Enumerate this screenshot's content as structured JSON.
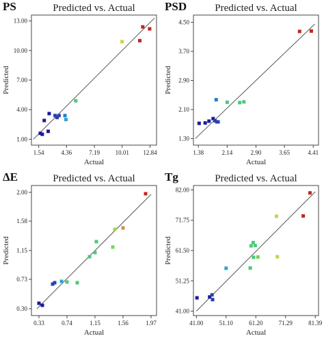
{
  "chart_data": [
    {
      "type": "scatter",
      "panel_label": "PS",
      "title": "Predicted vs. Actual",
      "xlabel": "Actual",
      "ylabel": "Predicted",
      "x_ticks": [
        "1.54",
        "4.36",
        "7.19",
        "10.01",
        "12.84"
      ],
      "y_ticks": [
        "1.00",
        "4.00",
        "7.00",
        "10.00",
        "13.00"
      ],
      "xlim": [
        0.8,
        13.5
      ],
      "ylim": [
        0.4,
        13.6
      ],
      "fit_line": [
        [
          1.0,
          1.0
        ],
        [
          13.3,
          13.3
        ]
      ],
      "points": [
        {
          "x": 1.7,
          "y": 1.6,
          "color": "#1a1a9c"
        },
        {
          "x": 1.9,
          "y": 1.5,
          "color": "#1a1a9c"
        },
        {
          "x": 2.1,
          "y": 2.9,
          "color": "#1a1a9c"
        },
        {
          "x": 2.5,
          "y": 1.8,
          "color": "#1a1a9c"
        },
        {
          "x": 2.6,
          "y": 3.6,
          "color": "#1a1a9c"
        },
        {
          "x": 3.2,
          "y": 3.4,
          "color": "#2a3eb0"
        },
        {
          "x": 3.4,
          "y": 3.2,
          "color": "#2a3eb0"
        },
        {
          "x": 3.6,
          "y": 3.4,
          "color": "#2a3eb0"
        },
        {
          "x": 4.2,
          "y": 3.4,
          "color": "#1f7fd0"
        },
        {
          "x": 4.3,
          "y": 3.0,
          "color": "#29a6d6"
        },
        {
          "x": 5.3,
          "y": 4.9,
          "color": "#4cc97a"
        },
        {
          "x": 10.0,
          "y": 10.9,
          "color": "#d0d24a"
        },
        {
          "x": 11.8,
          "y": 11.0,
          "color": "#c0281c"
        },
        {
          "x": 12.1,
          "y": 12.4,
          "color": "#c0281c"
        },
        {
          "x": 12.8,
          "y": 12.2,
          "color": "#c0281c"
        }
      ]
    },
    {
      "type": "scatter",
      "panel_label": "PSD",
      "title": "Predicted vs. Actual",
      "xlabel": "Actual",
      "ylabel": "Predicted",
      "x_ticks": [
        "1.38",
        "2.14",
        "2.90",
        "3.65",
        "4.41"
      ],
      "y_ticks": [
        "1.30",
        "2.10",
        "2.90",
        "3.70",
        "4.50"
      ],
      "xlim": [
        1.25,
        4.55
      ],
      "ylim": [
        1.12,
        4.7
      ],
      "fit_line": [
        [
          1.3,
          1.3
        ],
        [
          4.45,
          4.45
        ]
      ],
      "points": [
        {
          "x": 1.4,
          "y": 1.72,
          "color": "#1a1a9c"
        },
        {
          "x": 1.56,
          "y": 1.73,
          "color": "#1a1a9c"
        },
        {
          "x": 1.66,
          "y": 1.78,
          "color": "#1a1a9c"
        },
        {
          "x": 1.77,
          "y": 1.85,
          "color": "#1a1a9c"
        },
        {
          "x": 1.82,
          "y": 1.79,
          "color": "#2a3eb0"
        },
        {
          "x": 1.87,
          "y": 1.76,
          "color": "#2a3eb0"
        },
        {
          "x": 1.9,
          "y": 1.76,
          "color": "#2a3eb0"
        },
        {
          "x": 1.85,
          "y": 2.37,
          "color": "#1f7fd0"
        },
        {
          "x": 2.14,
          "y": 2.3,
          "color": "#4cc97a"
        },
        {
          "x": 2.47,
          "y": 2.29,
          "color": "#4cc97a"
        },
        {
          "x": 2.58,
          "y": 2.31,
          "color": "#4cc97a"
        },
        {
          "x": 4.05,
          "y": 4.25,
          "color": "#c0281c"
        },
        {
          "x": 4.36,
          "y": 4.26,
          "color": "#c0281c"
        }
      ]
    },
    {
      "type": "scatter",
      "panel_label": "ΔE",
      "title": "Predicted vs. Actual",
      "xlabel": "Actual",
      "ylabel": "Predicted",
      "x_ticks": [
        "0.33",
        "0.74",
        "1.15",
        "1.56",
        "1.97"
      ],
      "y_ticks": [
        "0.30",
        "0.73",
        "1.15",
        "1.58",
        "2.00"
      ],
      "xlim": [
        0.22,
        2.05
      ],
      "ylim": [
        0.2,
        2.1
      ],
      "fit_line": [
        [
          0.3,
          0.3
        ],
        [
          1.97,
          1.97
        ]
      ],
      "points": [
        {
          "x": 0.33,
          "y": 0.38,
          "color": "#1a1a9c"
        },
        {
          "x": 0.38,
          "y": 0.35,
          "color": "#1a1a9c"
        },
        {
          "x": 0.53,
          "y": 0.66,
          "color": "#2a3eb0"
        },
        {
          "x": 0.56,
          "y": 0.68,
          "color": "#2a3eb0"
        },
        {
          "x": 0.66,
          "y": 0.7,
          "color": "#29a6d6"
        },
        {
          "x": 0.74,
          "y": 0.69,
          "color": "#4cc97a"
        },
        {
          "x": 0.89,
          "y": 0.68,
          "color": "#4cc97a"
        },
        {
          "x": 1.07,
          "y": 1.06,
          "color": "#4cc97a"
        },
        {
          "x": 1.15,
          "y": 1.12,
          "color": "#4cc97a"
        },
        {
          "x": 1.17,
          "y": 1.28,
          "color": "#4cc97a"
        },
        {
          "x": 1.41,
          "y": 1.2,
          "color": "#78d35c"
        },
        {
          "x": 1.44,
          "y": 1.46,
          "color": "#a8d64a"
        },
        {
          "x": 1.56,
          "y": 1.48,
          "color": "#d09040"
        },
        {
          "x": 1.89,
          "y": 1.98,
          "color": "#c0281c"
        }
      ]
    },
    {
      "type": "scatter",
      "panel_label": "Tg",
      "title": "Predicted vs. Actual",
      "xlabel": "Actual",
      "ylabel": "Predicted",
      "x_ticks": [
        "41.00",
        "51.10",
        "61.20",
        "71.29",
        "81.39"
      ],
      "y_ticks": [
        "41.00",
        "51.25",
        "61.50",
        "71.75",
        "82.00"
      ],
      "xlim": [
        40.0,
        82.5
      ],
      "ylim": [
        39.5,
        83.5
      ],
      "fit_line": [
        [
          41.0,
          41.0
        ],
        [
          81.39,
          81.39
        ]
      ],
      "points": [
        {
          "x": 41.2,
          "y": 45.5,
          "color": "#1a1a9c"
        },
        {
          "x": 45.5,
          "y": 45.8,
          "color": "#1a1a9c"
        },
        {
          "x": 46.3,
          "y": 46.5,
          "color": "#2a3eb0"
        },
        {
          "x": 46.5,
          "y": 44.9,
          "color": "#2a3eb0"
        },
        {
          "x": 51.1,
          "y": 55.5,
          "color": "#29a6d6"
        },
        {
          "x": 59.3,
          "y": 55.6,
          "color": "#4cc97a"
        },
        {
          "x": 59.6,
          "y": 63.1,
          "color": "#4cc97a"
        },
        {
          "x": 60.3,
          "y": 64.2,
          "color": "#4cc97a"
        },
        {
          "x": 60.4,
          "y": 59.2,
          "color": "#4cc97a"
        },
        {
          "x": 61.0,
          "y": 63.2,
          "color": "#4cc97a"
        },
        {
          "x": 61.9,
          "y": 59.3,
          "color": "#78d35c"
        },
        {
          "x": 68.2,
          "y": 73.1,
          "color": "#c5d44a"
        },
        {
          "x": 68.5,
          "y": 59.4,
          "color": "#c5d44a"
        },
        {
          "x": 77.3,
          "y": 73.2,
          "color": "#c0281c"
        },
        {
          "x": 79.6,
          "y": 81.0,
          "color": "#c0281c"
        }
      ]
    }
  ]
}
